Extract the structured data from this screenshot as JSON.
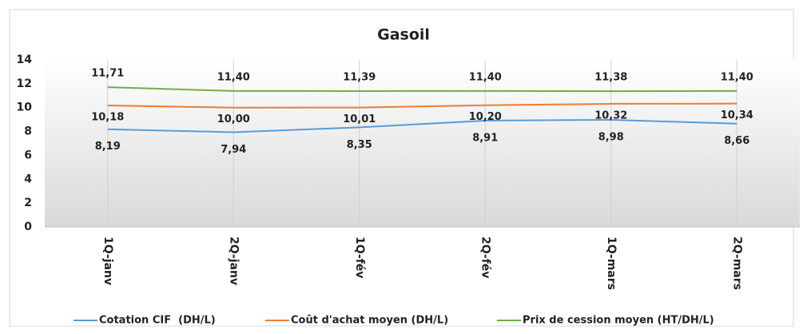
{
  "chart_data": {
    "type": "line",
    "title": "Gasoil",
    "categories": [
      "1Q-janv",
      "2Q-janv",
      "1Q-fév",
      "2Q-fév",
      "1Q-mars",
      "2Q-mars"
    ],
    "series": [
      {
        "name": "Cotation CIF  (DH/L)",
        "color": "#5b9bd5",
        "values": [
          8.19,
          7.94,
          8.35,
          8.91,
          8.98,
          8.66
        ],
        "value_labels": [
          "8,19",
          "7,94",
          "8,35",
          "8,91",
          "8,98",
          "8,66"
        ]
      },
      {
        "name": "Coût d'achat moyen (DH/L)",
        "color": "#ed7d31",
        "values": [
          10.18,
          10.0,
          10.01,
          10.2,
          10.32,
          10.34
        ],
        "value_labels": [
          "10,18",
          "10,00",
          "10,01",
          "10,20",
          "10,32",
          "10,34"
        ]
      },
      {
        "name": "Prix de cession moyen (HT/DH/L)",
        "color": "#70ad47",
        "values": [
          11.71,
          11.4,
          11.39,
          11.4,
          11.38,
          11.4
        ],
        "value_labels": [
          "11,71",
          "11,40",
          "11,39",
          "11,40",
          "11,38",
          "11,40"
        ]
      }
    ],
    "ylim": [
      0,
      14
    ],
    "yticks": [
      0,
      2,
      4,
      6,
      8,
      10,
      12,
      14
    ],
    "grid": true,
    "legend": "bottom"
  }
}
